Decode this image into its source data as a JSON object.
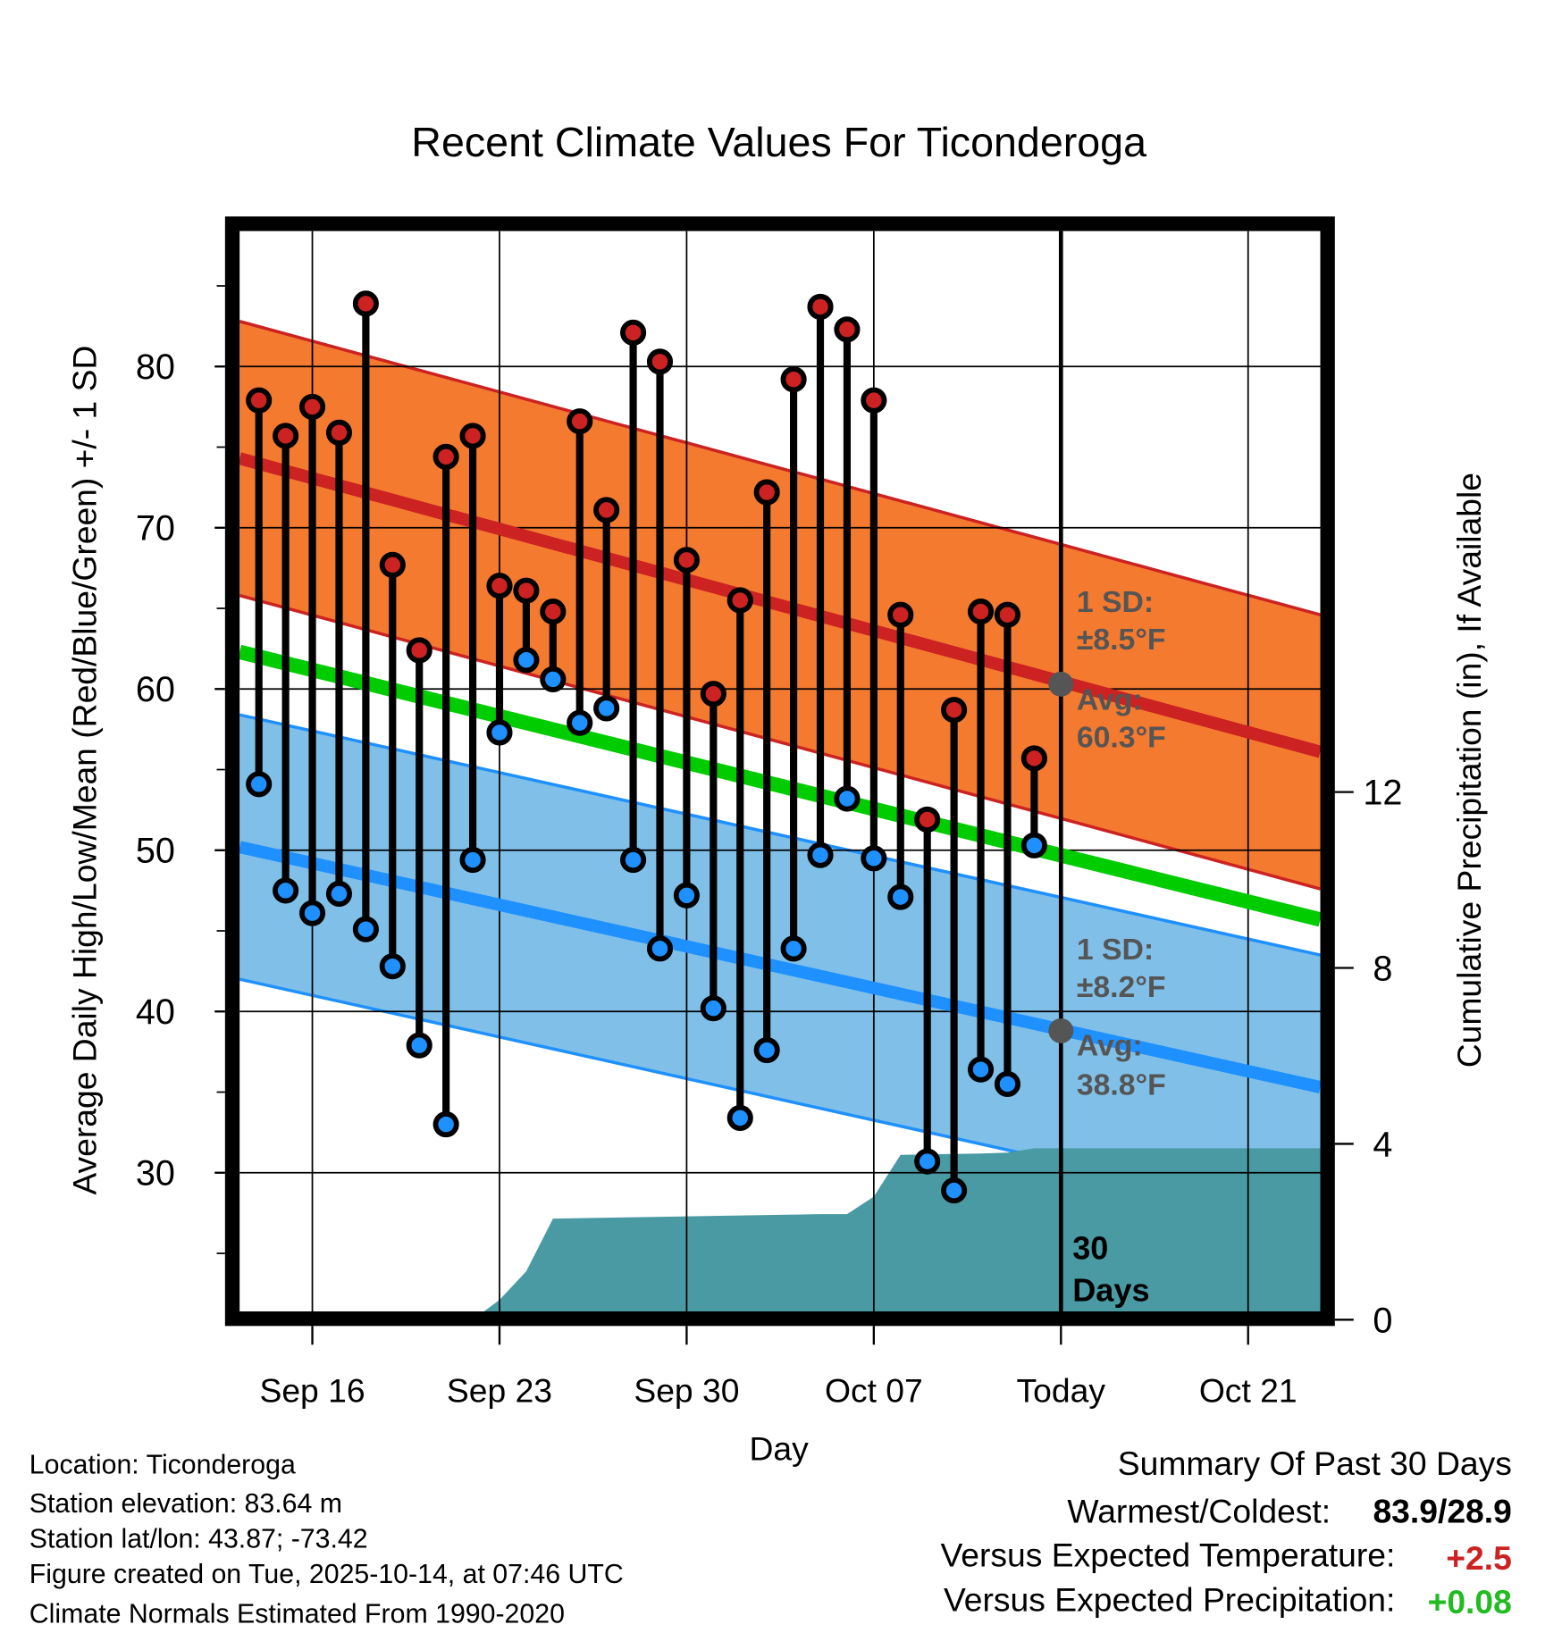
{
  "chart_data": {
    "type": "line",
    "title": "Recent Climate Values For Ticonderoga",
    "xlabel": "Day",
    "ylabel": "Average Daily High/Low/Mean (Red/Blue/Green) +/- 1 SD",
    "y2label": "Cumulative Precipitation (in), If Available",
    "ylim": [
      21.4,
      88.4
    ],
    "y2lim": [
      0,
      24.8
    ],
    "xlim_days_from_sep14": [
      -0.72,
      39.7
    ],
    "grid": true,
    "yticks": [
      30,
      40,
      50,
      60,
      70,
      80
    ],
    "y2ticks": [
      0,
      4,
      8,
      12
    ],
    "xticks": [
      {
        "day": 2,
        "label": "Sep 16"
      },
      {
        "day": 9,
        "label": "Sep 23"
      },
      {
        "day": 16,
        "label": "Sep 30"
      },
      {
        "day": 23,
        "label": "Oct 07"
      },
      {
        "day": 30,
        "label": "Today"
      },
      {
        "day": 37,
        "label": "Oct 21"
      }
    ],
    "dates": [
      "Sep 14",
      "Sep 15",
      "Sep 16",
      "Sep 17",
      "Sep 18",
      "Sep 19",
      "Sep 20",
      "Sep 21",
      "Sep 22",
      "Sep 23",
      "Sep 24",
      "Sep 25",
      "Sep 26",
      "Sep 27",
      "Sep 28",
      "Sep 29",
      "Sep 30",
      "Oct 01",
      "Oct 02",
      "Oct 03",
      "Oct 04",
      "Oct 05",
      "Oct 06",
      "Oct 07",
      "Oct 08",
      "Oct 09",
      "Oct 10",
      "Oct 11",
      "Oct 12",
      "Oct 13"
    ],
    "series": [
      {
        "name": "Daily High",
        "color": "#cc2222",
        "values": [
          77.9,
          75.7,
          77.5,
          75.9,
          83.9,
          67.7,
          62.4,
          74.4,
          75.7,
          66.4,
          66.1,
          64.8,
          76.6,
          71.1,
          82.1,
          80.3,
          68.0,
          59.7,
          65.5,
          72.2,
          79.2,
          83.7,
          82.3,
          77.9,
          64.6,
          51.9,
          58.7,
          64.8,
          64.6,
          55.7
        ]
      },
      {
        "name": "Daily Low",
        "color": "#1e90ff",
        "values": [
          54.1,
          47.5,
          46.1,
          47.3,
          45.1,
          42.8,
          37.9,
          33.0,
          49.4,
          57.3,
          61.8,
          60.6,
          57.9,
          58.8,
          49.4,
          43.9,
          47.2,
          40.2,
          33.4,
          37.6,
          43.9,
          49.7,
          53.2,
          49.5,
          47.1,
          30.7,
          28.9,
          36.4,
          35.5,
          50.3
        ]
      },
      {
        "name": "Cumulative Precipitation",
        "color": "#4a9aa4",
        "values": [
          0,
          0,
          0,
          0,
          0,
          0,
          0,
          0,
          0,
          0.45,
          1.1,
          2.3,
          2.31,
          2.32,
          2.33,
          2.34,
          2.35,
          2.36,
          2.37,
          2.38,
          2.39,
          2.4,
          2.4,
          2.8,
          3.75,
          3.76,
          3.77,
          3.78,
          3.8,
          3.9
        ]
      }
    ],
    "normals": {
      "high": {
        "start": 74.3,
        "end": 56.1,
        "sd": 8.5,
        "color": "#cc2222",
        "band_color": "#f47a30"
      },
      "low": {
        "start": 50.2,
        "end": 35.3,
        "sd": 8.2,
        "color": "#1e90ff",
        "band_color": "#80c0e8"
      },
      "mean": {
        "start": 62.3,
        "end": 45.7,
        "color": "#00cc00"
      }
    },
    "annotations": {
      "high_sd": [
        "1 SD:",
        "±8.5°F"
      ],
      "high_avg": [
        "Avg:",
        "60.3°F"
      ],
      "low_sd": [
        "1 SD:",
        "±8.2°F"
      ],
      "low_avg": [
        "Avg:",
        "38.8°F"
      ],
      "today_high_avg": 60.3,
      "today_low_avg": 38.8,
      "days": [
        "30",
        "Days"
      ]
    }
  },
  "footer": {
    "location": "Location: Ticonderoga",
    "elevation": "Station elevation: 83.64 m",
    "latlon": "Station lat/lon: 43.87; -73.42",
    "created": "Figure created on Tue, 2025-10-14, at 07:46 UTC",
    "normals": "Climate Normals Estimated From 1990-2020"
  },
  "summary": {
    "title": "Summary Of Past 30 Days",
    "warmest_label": "Warmest/Coldest:",
    "warmest_value": "83.9/28.9",
    "temp_label": "Versus Expected Temperature:",
    "temp_value": "+2.5",
    "temp_color": "#cc2222",
    "precip_label": "Versus Expected Precipitation:",
    "precip_value": "+0.08",
    "precip_color": "#22bb22"
  }
}
